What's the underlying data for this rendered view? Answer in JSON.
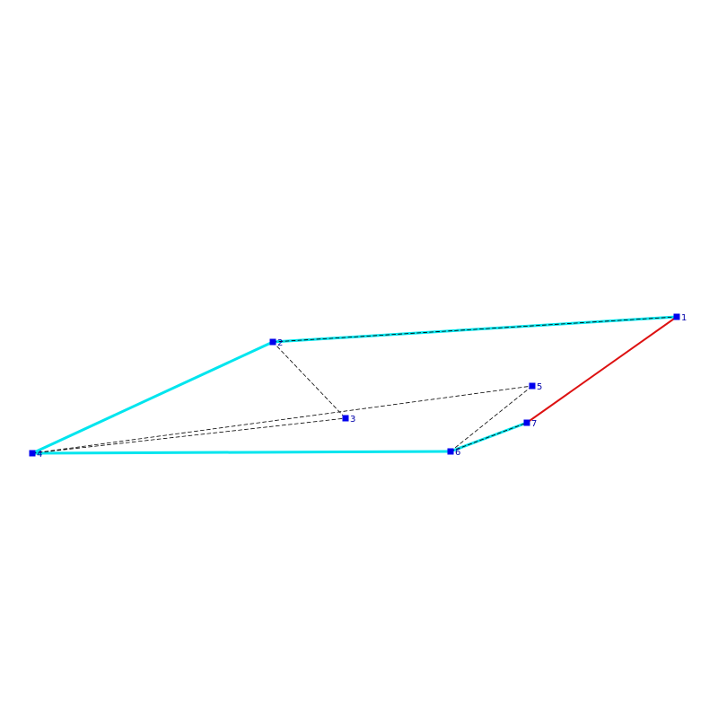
{
  "colors": {
    "background": "#ffffff",
    "highlight_edge": "#00e5ee",
    "accent_edge": "#dd1111",
    "dashed_edge": "#000000",
    "node_fill": "#0000ee",
    "label_text": "#0000aa"
  },
  "nodes": [
    {
      "id": "1",
      "label": "1"
    },
    {
      "id": "2",
      "label": "2"
    },
    {
      "id": "3",
      "label": "3"
    },
    {
      "id": "4",
      "label": "4"
    },
    {
      "id": "5",
      "label": "5"
    },
    {
      "id": "6",
      "label": "6"
    },
    {
      "id": "7",
      "label": "7"
    }
  ],
  "edges": [
    {
      "from": "2",
      "to": "1",
      "style": "highlight"
    },
    {
      "from": "2",
      "to": "1",
      "style": "dashed"
    },
    {
      "from": "4",
      "to": "2",
      "style": "highlight"
    },
    {
      "from": "4",
      "to": "6",
      "style": "highlight"
    },
    {
      "from": "6",
      "to": "7",
      "style": "highlight"
    },
    {
      "from": "6",
      "to": "7",
      "style": "dashed"
    },
    {
      "from": "7",
      "to": "1",
      "style": "accent"
    },
    {
      "from": "2",
      "to": "3",
      "style": "dashed"
    },
    {
      "from": "4",
      "to": "3",
      "style": "dashed"
    },
    {
      "from": "4",
      "to": "5",
      "style": "dashed"
    },
    {
      "from": "6",
      "to": "5",
      "style": "dashed"
    }
  ]
}
